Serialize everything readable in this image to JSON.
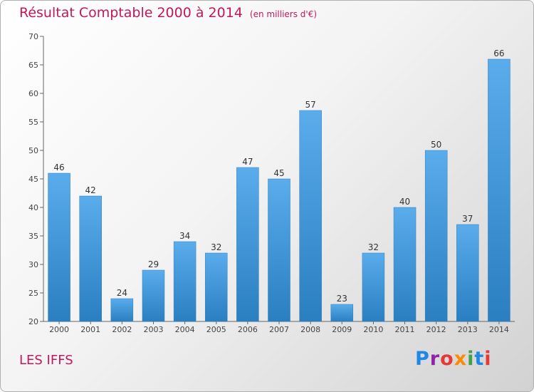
{
  "header": {
    "title": "Résultat Comptable 2000 à 2014",
    "unit": "(en milliers d'€)"
  },
  "footer": {
    "place": "LES IFFS",
    "logo": {
      "letters": [
        "P",
        "r",
        "o",
        "x",
        "i",
        "t",
        "i"
      ],
      "colors": [
        "#1e88e5",
        "#8e24aa",
        "#e53935",
        "#fb8c00",
        "#43a047",
        "#1e88e5",
        "#e53935"
      ]
    }
  },
  "chart_data": {
    "type": "bar",
    "title": "Résultat Comptable 2000 à 2014",
    "subtitle": "(en milliers d'€)",
    "categories": [
      "2000",
      "2001",
      "2002",
      "2003",
      "2004",
      "2005",
      "2006",
      "2007",
      "2008",
      "2009",
      "2010",
      "2011",
      "2012",
      "2013",
      "2014"
    ],
    "values": [
      46,
      42,
      24,
      29,
      34,
      32,
      47,
      45,
      57,
      23,
      32,
      40,
      50,
      37,
      66
    ],
    "ylim": [
      20,
      70
    ],
    "yticks": [
      20,
      25,
      30,
      35,
      40,
      45,
      50,
      55,
      60,
      65,
      70
    ],
    "grid": false,
    "bar_color": "#3f97db"
  }
}
